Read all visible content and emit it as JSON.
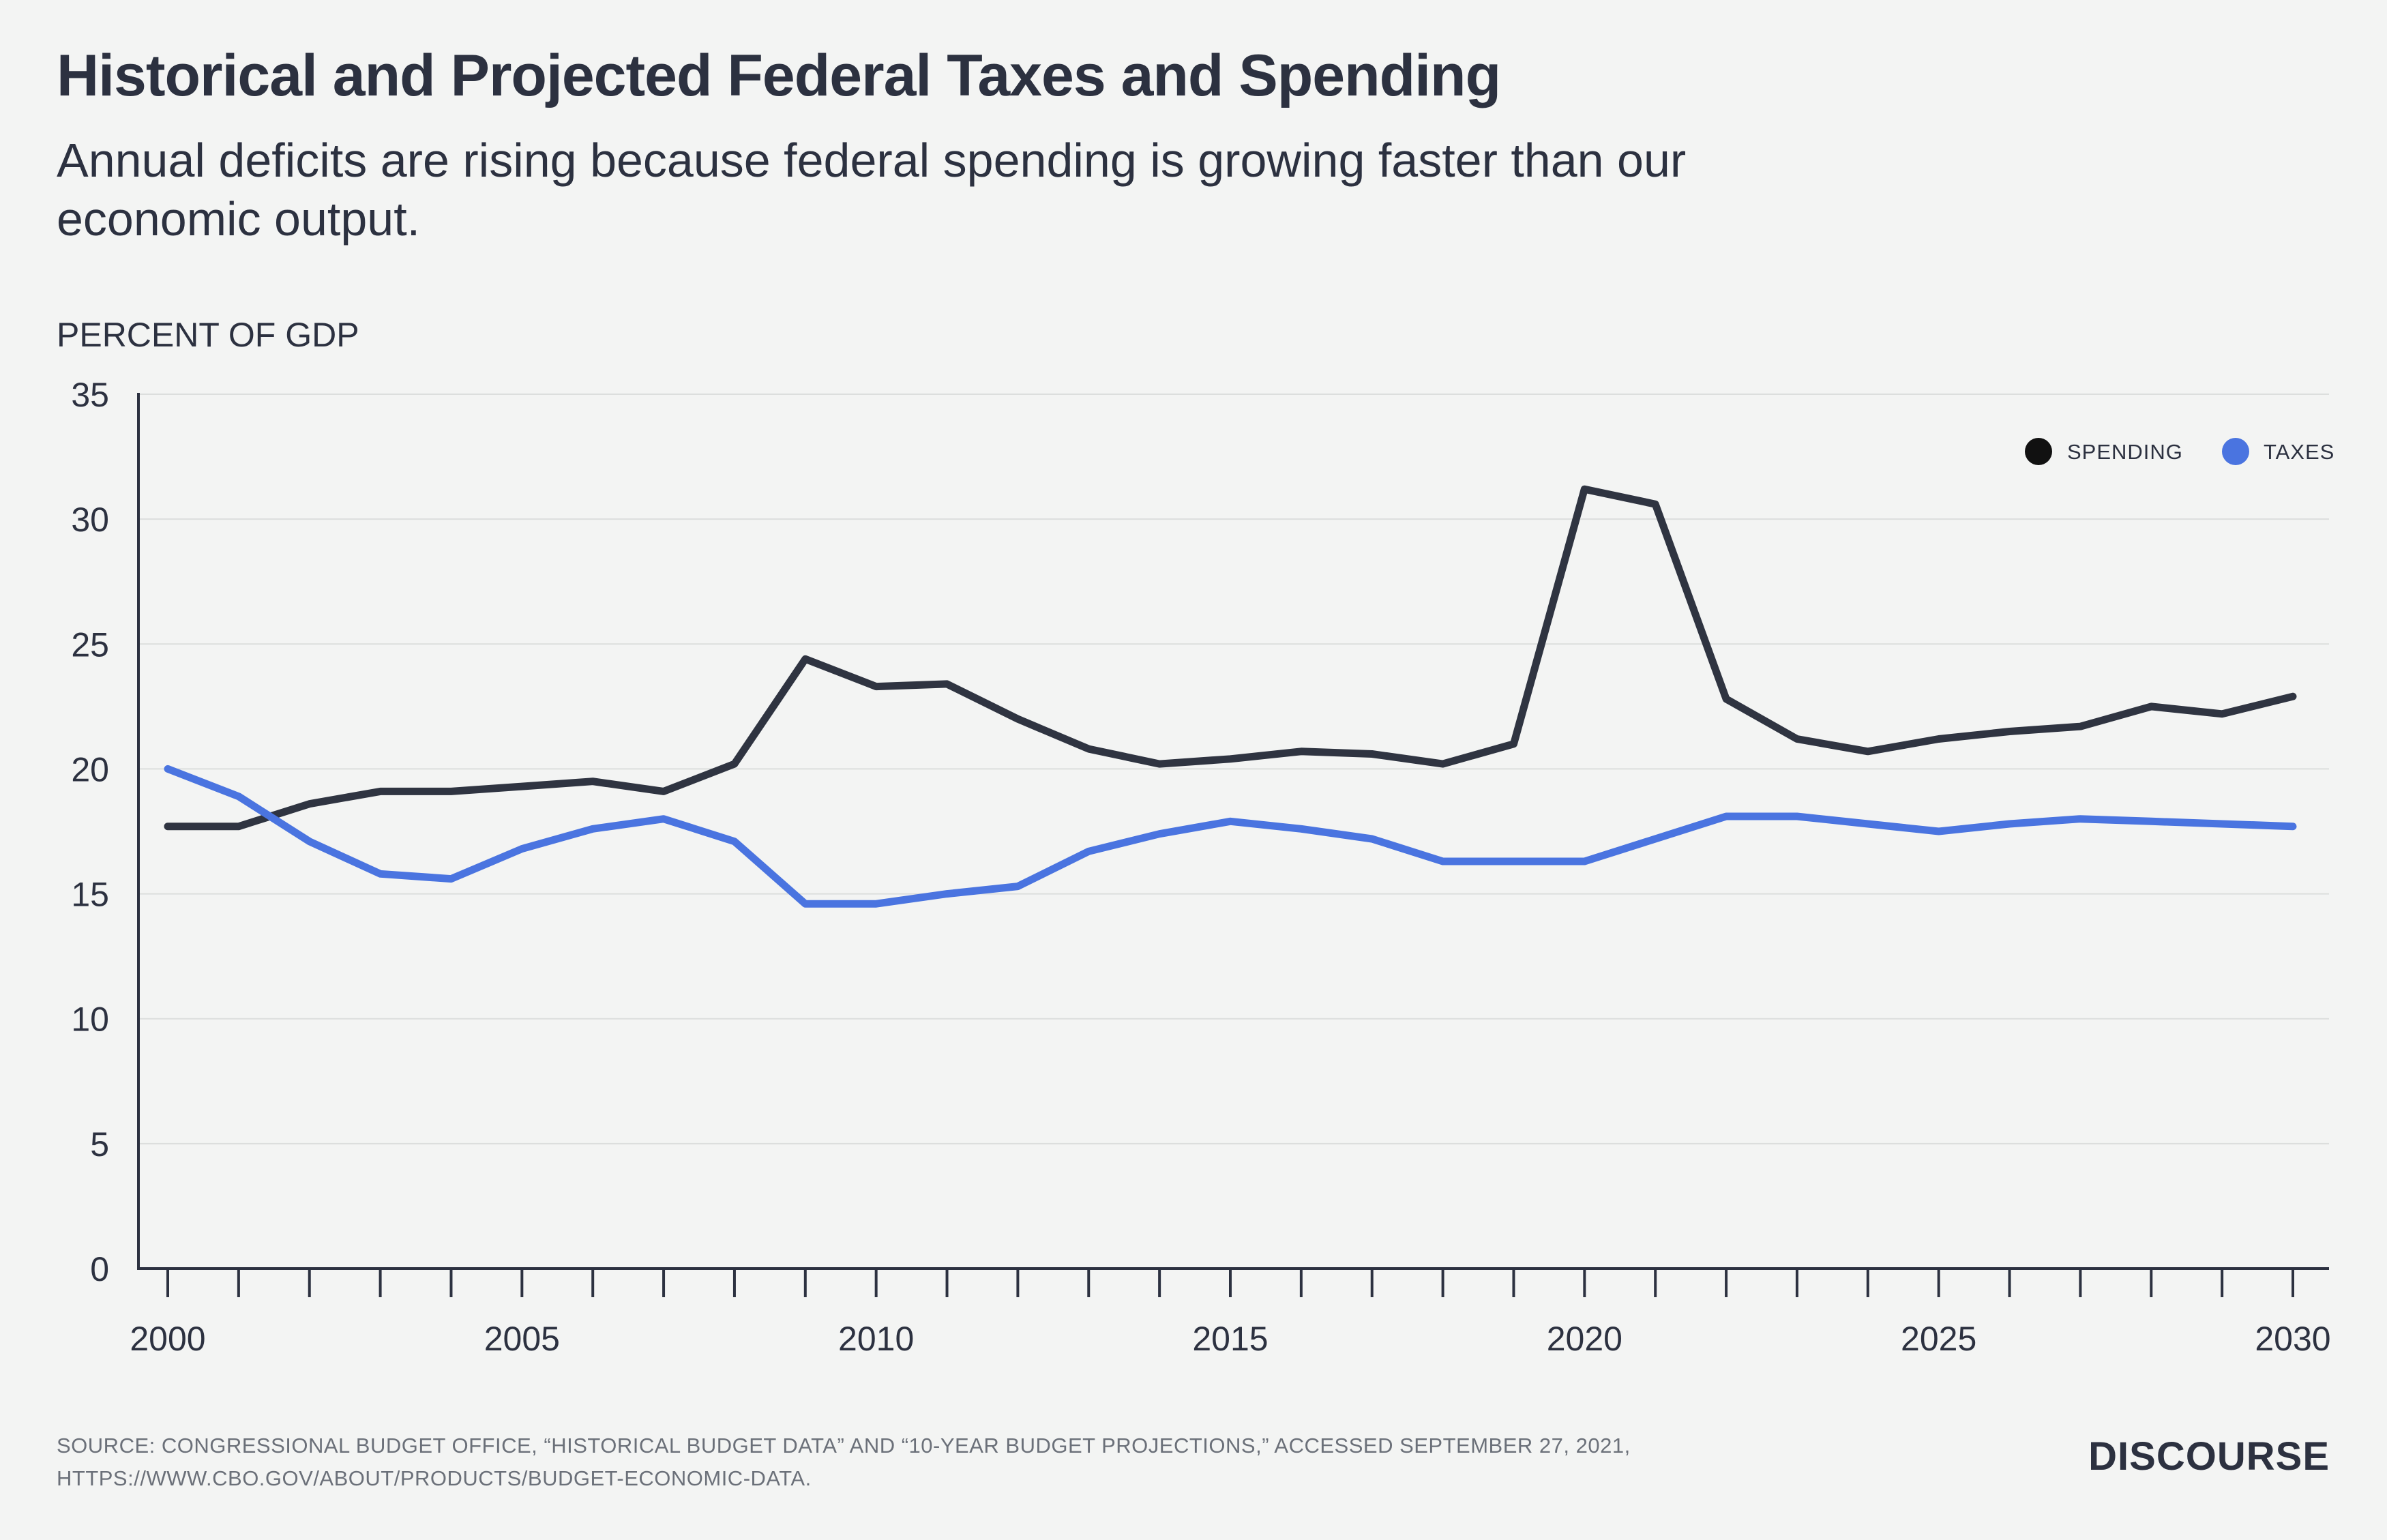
{
  "header": {
    "title": "Historical and Projected Federal Taxes and Spending",
    "subtitle": "Annual deficits are rising because federal spending is growing faster than our economic output."
  },
  "footer": {
    "source": "SOURCE: CONGRESSIONAL BUDGET OFFICE, “HISTORICAL BUDGET DATA” AND “10-YEAR BUDGET PROJECTIONS,” ACCESSED SEPTEMBER 27, 2021, HTTPS://WWW.CBO.GOV/ABOUT/PRODUCTS/BUDGET-ECONOMIC-DATA.",
    "brand": "DISCOURSE"
  },
  "chart_data": {
    "type": "line",
    "ylabel": "PERCENT OF GDP",
    "xlabel": "",
    "x": [
      2000,
      2001,
      2002,
      2003,
      2004,
      2005,
      2006,
      2007,
      2008,
      2009,
      2010,
      2011,
      2012,
      2013,
      2014,
      2015,
      2016,
      2017,
      2018,
      2019,
      2020,
      2021,
      2022,
      2023,
      2024,
      2025,
      2026,
      2027,
      2028,
      2029,
      2030
    ],
    "xlim": [
      2000,
      2030
    ],
    "ylim": [
      0,
      35
    ],
    "x_ticks": [
      2000,
      2005,
      2010,
      2015,
      2020,
      2025,
      2030
    ],
    "y_ticks": [
      0,
      5,
      10,
      15,
      20,
      25,
      30,
      35
    ],
    "grid": "horizontal",
    "legend_position": "top-right",
    "series": [
      {
        "name": "SPENDING",
        "color": "#2f3441",
        "legend_marker_color": "#111111",
        "values": [
          17.7,
          17.7,
          18.6,
          19.1,
          19.1,
          19.3,
          19.5,
          19.1,
          20.2,
          24.4,
          23.3,
          23.4,
          22.0,
          20.8,
          20.2,
          20.4,
          20.7,
          20.6,
          20.2,
          21.0,
          31.2,
          30.6,
          22.8,
          21.2,
          20.7,
          21.2,
          21.5,
          21.7,
          22.5,
          22.2,
          22.9
        ]
      },
      {
        "name": "TAXES",
        "color": "#4a74e0",
        "legend_marker_color": "#4a74e0",
        "values": [
          20.0,
          18.9,
          17.1,
          15.8,
          15.6,
          16.8,
          17.6,
          18.0,
          17.1,
          14.6,
          14.6,
          15.0,
          15.3,
          16.7,
          17.4,
          17.9,
          17.6,
          17.2,
          16.3,
          16.3,
          16.3,
          17.2,
          18.1,
          18.1,
          17.8,
          17.5,
          17.8,
          18.0,
          17.9,
          17.8,
          17.7
        ]
      }
    ]
  }
}
